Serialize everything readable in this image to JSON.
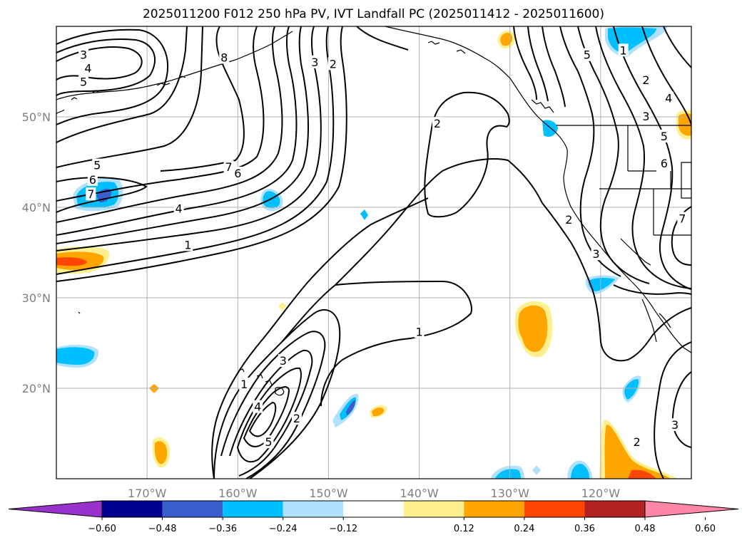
{
  "title": "2025011200 F012 250 hPa PV, IVT Landfall PC (2025011412 - 2025011600)",
  "map": {
    "lat_range": [
      10,
      60
    ],
    "lon_range": [
      -180,
      -110
    ],
    "lat_ticks": [
      {
        "value": 50,
        "label": "50°N"
      },
      {
        "value": 40,
        "label": "40°N"
      },
      {
        "value": 30,
        "label": "30°N"
      },
      {
        "value": 20,
        "label": "20°N"
      }
    ],
    "lon_ticks": [
      {
        "value": -170,
        "label": "170°W"
      },
      {
        "value": -160,
        "label": "160°W"
      },
      {
        "value": -150,
        "label": "150°W"
      },
      {
        "value": -140,
        "label": "140°W"
      },
      {
        "value": -130,
        "label": "130°W"
      },
      {
        "value": -120,
        "label": "120°W"
      }
    ],
    "grid": true,
    "pv_contour_labels": [
      {
        "text": "3",
        "lon": -177,
        "lat": 56.8
      },
      {
        "text": "4",
        "lon": -176.5,
        "lat": 55.3
      },
      {
        "text": "5",
        "lon": -177,
        "lat": 53.8
      },
      {
        "text": "8",
        "lon": -161.5,
        "lat": 56.5
      },
      {
        "text": "3",
        "lon": -151.5,
        "lat": 56.0
      },
      {
        "text": "2",
        "lon": -149.5,
        "lat": 55.8
      },
      {
        "text": "5",
        "lon": -175.5,
        "lat": 44.6
      },
      {
        "text": "6",
        "lon": -176.0,
        "lat": 43.0
      },
      {
        "text": "7",
        "lon": -176.2,
        "lat": 41.4
      },
      {
        "text": "7",
        "lon": -161.0,
        "lat": 44.4
      },
      {
        "text": "6",
        "lon": -160.0,
        "lat": 43.7
      },
      {
        "text": "4",
        "lon": -166.5,
        "lat": 39.8
      },
      {
        "text": "1",
        "lon": -165.5,
        "lat": 35.8
      },
      {
        "text": "2",
        "lon": -138.0,
        "lat": 49.2
      },
      {
        "text": "1",
        "lon": -140.0,
        "lat": 26.2
      },
      {
        "text": "3",
        "lon": -155.0,
        "lat": 23.0
      },
      {
        "text": "1",
        "lon": -159.3,
        "lat": 20.4
      },
      {
        "text": "4",
        "lon": -157.8,
        "lat": 17.9
      },
      {
        "text": "5",
        "lon": -156.6,
        "lat": 14.0
      },
      {
        "text": "2",
        "lon": -153.5,
        "lat": 16.6
      },
      {
        "text": "5",
        "lon": -121.5,
        "lat": 56.8
      },
      {
        "text": "1",
        "lon": -117.5,
        "lat": 57.3
      },
      {
        "text": "2",
        "lon": -115.0,
        "lat": 54.0
      },
      {
        "text": "4",
        "lon": -112.5,
        "lat": 52.0
      },
      {
        "text": "3",
        "lon": -115.0,
        "lat": 50.0
      },
      {
        "text": "5",
        "lon": -113.0,
        "lat": 47.8
      },
      {
        "text": "6",
        "lon": -113.0,
        "lat": 44.8
      },
      {
        "text": "7",
        "lon": -111.0,
        "lat": 38.7
      },
      {
        "text": "2",
        "lon": -123.5,
        "lat": 38.6
      },
      {
        "text": "3",
        "lon": -120.5,
        "lat": 34.8
      },
      {
        "text": "2",
        "lon": -116.0,
        "lat": 14.0
      },
      {
        "text": "3",
        "lon": -111.8,
        "lat": 15.9
      }
    ]
  },
  "colorbar": {
    "colors": [
      "#9932cc",
      "#000090",
      "#3a5fcd",
      "#00bfff",
      "#b0e2ff",
      "#ffffff",
      "#fff08f",
      "#ffa500",
      "#ff4500",
      "#b22222",
      "#ff87a5"
    ],
    "tick_labels": [
      "−0.60",
      "−0.48",
      "−0.36",
      "−0.24",
      "−0.12",
      "0.12",
      "0.24",
      "0.36",
      "0.48",
      "0.60"
    ]
  }
}
